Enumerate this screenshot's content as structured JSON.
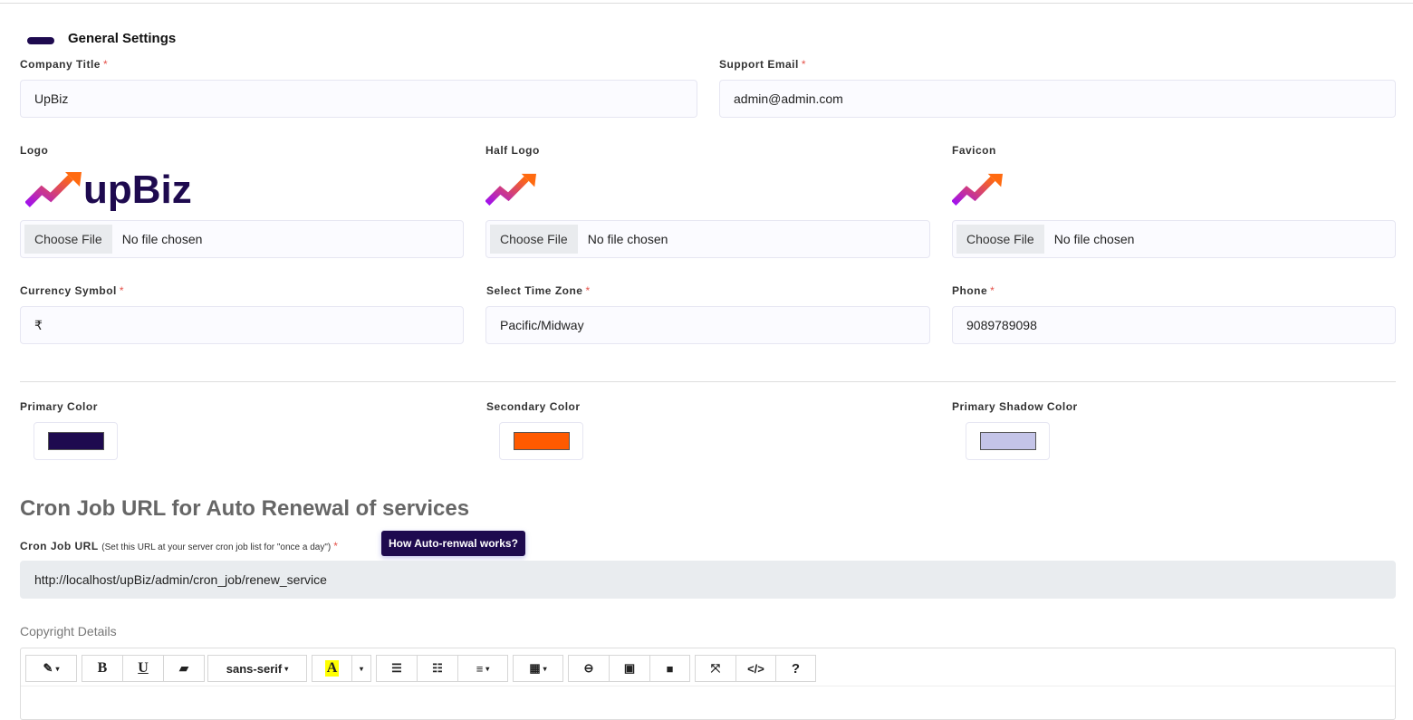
{
  "section": {
    "title": "General Settings"
  },
  "fields": {
    "company_title": {
      "label": "Company Title",
      "value": "UpBiz",
      "required": "*"
    },
    "support_email": {
      "label": "Support Email",
      "value": "admin@admin.com",
      "required": "*"
    },
    "logo": {
      "label": "Logo",
      "logo_text": "upBiz",
      "button": "Choose File",
      "status": "No file chosen"
    },
    "half_logo": {
      "label": "Half Logo",
      "button": "Choose File",
      "status": "No file chosen"
    },
    "favicon": {
      "label": "Favicon",
      "button": "Choose File",
      "status": "No file chosen"
    },
    "currency": {
      "label": "Currency Symbol",
      "value": "₹",
      "required": "*"
    },
    "timezone": {
      "label": "Select Time Zone",
      "value": "Pacific/Midway",
      "required": "*"
    },
    "phone": {
      "label": "Phone",
      "value": "9089789098",
      "required": "*"
    }
  },
  "colors": {
    "primary": {
      "label": "Primary Color",
      "value": "#1e0a4f"
    },
    "secondary": {
      "label": "Secondary Color",
      "value": "#ff5a00"
    },
    "shadow": {
      "label": "Primary Shadow Color",
      "value": "#c4c4e8"
    }
  },
  "cron": {
    "heading": "Cron Job URL for Auto Renewal of services",
    "label": "Cron Job URL",
    "hint": "(Set this URL at your server cron job list for \"once a day\")",
    "required": "*",
    "help_button": "How Auto-renwal works?",
    "url": "http://localhost/upBiz/admin/cron_job/renew_service"
  },
  "copyright": {
    "label": "Copyright Details"
  },
  "toolbar": {
    "style": "✎",
    "bold": "B",
    "underline": "U",
    "eraser": "▰",
    "font": "sans-serif",
    "color": "A",
    "ul": "☰",
    "ol": "☷",
    "align": "≡",
    "table": "▦",
    "link": "⊖",
    "picture": "▣",
    "video": "■",
    "fullscreen": "⤧",
    "code": "</>",
    "help": "?",
    "caret": "▾"
  }
}
